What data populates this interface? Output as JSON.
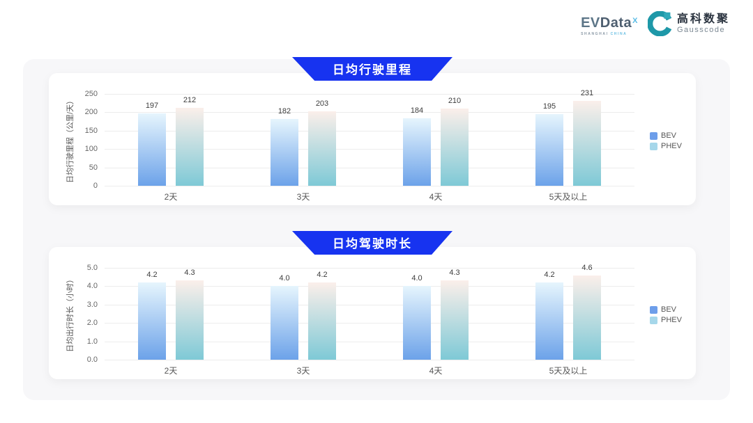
{
  "header": {
    "evdata_ev": "EV",
    "evdata_data": "Data",
    "evdata_sup": "X",
    "evdata_sub1": "SHANGHAI",
    "evdata_sub2": "CHINA",
    "gausscode_cn": "高科数聚",
    "gausscode_en": "Gausscode"
  },
  "style": {
    "banner_color": "#1733f0",
    "panel_bg": "#f7f7f9",
    "card_bg": "#ffffff",
    "gridline_color": "#ececec",
    "bar_gradients": [
      {
        "top": "#e6f5fd",
        "bottom": "#6ca2e9"
      },
      {
        "top": "#fbefea",
        "bottom": "#7ec9d6"
      }
    ],
    "legend_colors": [
      "#6d9eea",
      "#a6d7ea"
    ],
    "gausscode_teal": "#1e98a8"
  },
  "chart_data": [
    {
      "type": "bar",
      "title": "日均行驶里程",
      "ylabel": "日均行驶里程（公里/天）",
      "xlabel": "",
      "categories": [
        "2天",
        "3天",
        "4天",
        "5天及以上"
      ],
      "yticks": [
        "0",
        "50",
        "100",
        "150",
        "200",
        "250"
      ],
      "ylim": [
        0,
        250
      ],
      "grid": true,
      "legend_position": "right",
      "series": [
        {
          "name": "BEV",
          "values": [
            197,
            182,
            184,
            195
          ],
          "labels": [
            "197",
            "182",
            "184",
            "195"
          ]
        },
        {
          "name": "PHEV",
          "values": [
            212,
            203,
            210,
            231
          ],
          "labels": [
            "212",
            "203",
            "210",
            "231"
          ]
        }
      ]
    },
    {
      "type": "bar",
      "title": "日均驾驶时长",
      "ylabel": "日均出行时长（小时）",
      "xlabel": "",
      "categories": [
        "2天",
        "3天",
        "4天",
        "5天及以上"
      ],
      "yticks": [
        "0.0",
        "1.0",
        "2.0",
        "3.0",
        "4.0",
        "5.0"
      ],
      "ylim": [
        0,
        5
      ],
      "grid": true,
      "legend_position": "right",
      "series": [
        {
          "name": "BEV",
          "values": [
            4.2,
            4.0,
            4.0,
            4.2
          ],
          "labels": [
            "4.2",
            "4.0",
            "4.0",
            "4.2"
          ]
        },
        {
          "name": "PHEV",
          "values": [
            4.3,
            4.2,
            4.3,
            4.6
          ],
          "labels": [
            "4.3",
            "4.2",
            "4.3",
            "4.6"
          ]
        }
      ]
    }
  ]
}
